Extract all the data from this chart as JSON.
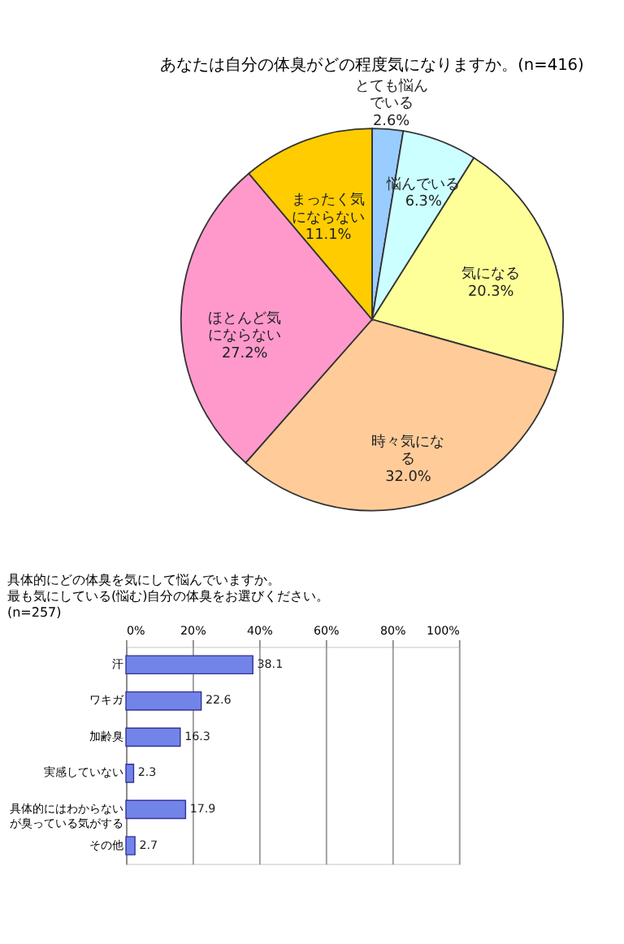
{
  "chart_data": [
    {
      "type": "pie",
      "title": "あなたは自分の体臭がどの程度気になりますか。(n=416)",
      "categories": [
        "とても悩んでいる",
        "悩んでいる",
        "気になる",
        "時々気になる",
        "ほとんど気にならない",
        "まったく気にならない"
      ],
      "values": [
        2.6,
        6.3,
        20.3,
        32.0,
        27.2,
        11.1
      ],
      "value_labels": [
        "2.6%",
        "6.3%",
        "20.3%",
        "32.0%",
        "27.2%",
        "11.1%"
      ],
      "colors": [
        "#99ccff",
        "#ccffff",
        "#ffff99",
        "#ffcc99",
        "#ff99cc",
        "#ffcc00"
      ]
    },
    {
      "type": "bar",
      "orientation": "horizontal",
      "title": "具体的にどの体臭を気にして悩んでいますか。最も気にしている(悩む)自分の体臭をお選びください。(n=257)",
      "categories": [
        "汗",
        "ワキガ",
        "加齢臭",
        "実感していない",
        "具体的にはわからないが臭っている気がする",
        "その他"
      ],
      "values": [
        38.1,
        22.6,
        16.3,
        2.3,
        17.9,
        2.7
      ],
      "value_labels": [
        "38.1",
        "22.6",
        "16.3",
        "2.3",
        "17.9",
        "2.7"
      ],
      "color": "#7384e8",
      "xlim": [
        0,
        100
      ],
      "xticks": [
        {
          "value": 0,
          "label": "0%"
        },
        {
          "value": 20,
          "label": "20%"
        },
        {
          "value": 40,
          "label": "40%"
        },
        {
          "value": 60,
          "label": "60%"
        },
        {
          "value": 80,
          "label": "80%"
        },
        {
          "value": 100,
          "label": "100%"
        }
      ],
      "grid": "x"
    }
  ]
}
